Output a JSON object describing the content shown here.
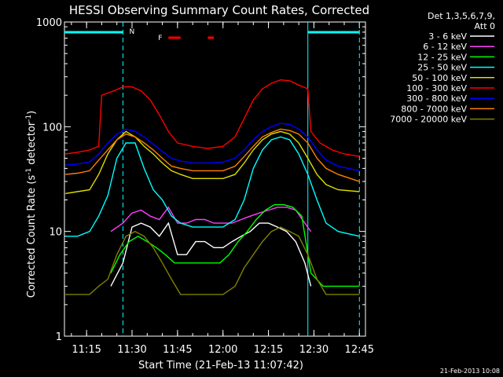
{
  "chart_data": {
    "type": "line",
    "title": "HESSI Observing Summary Count Rates, Corrected",
    "xlabel": "Start Time (21-Feb-13 11:07:42)",
    "ylabel_main": "Corrected Count Rate (s",
    "ylabel_sup1": "-1",
    "ylabel_mid": " detector",
    "ylabel_sup2": "-1",
    "ylabel_end": ")",
    "yscale": "log",
    "ylim": [
      1,
      1000
    ],
    "xlim": [
      "11:07:42",
      "12:47:00"
    ],
    "xticks": [
      "11:15",
      "11:30",
      "11:45",
      "12:00",
      "12:15",
      "12:30",
      "12:45"
    ],
    "yticks": [
      "1",
      "10",
      "100",
      "1000"
    ],
    "footer_timestamp": "21-Feb-2013 10:08",
    "legend_title_1": "Det 1,3,5,6,7,9,",
    "legend_title_2": "Att 0",
    "legend_position": "right",
    "night_label": "N",
    "flare_label": "F",
    "night_intervals": [
      [
        "11:07:42",
        "11:27:00"
      ],
      [
        "12:28:00",
        "12:45:00"
      ]
    ],
    "flare_intervals": [
      [
        "11:42:00",
        "11:46:00"
      ],
      [
        "11:55:00",
        "11:57:00"
      ]
    ],
    "series": [
      {
        "name": "3 - 6 keV",
        "color": "#ffffff",
        "points": [
          [
            "11:23",
            3
          ],
          [
            "11:27",
            5
          ],
          [
            "11:30",
            11
          ],
          [
            "11:33",
            12
          ],
          [
            "11:36",
            11
          ],
          [
            "11:39",
            9
          ],
          [
            "11:42",
            12
          ],
          [
            "11:45",
            6
          ],
          [
            "11:48",
            6
          ],
          [
            "11:51",
            8
          ],
          [
            "11:54",
            8
          ],
          [
            "11:57",
            7
          ],
          [
            "12:00",
            7
          ],
          [
            "12:03",
            8
          ],
          [
            "12:06",
            9
          ],
          [
            "12:09",
            10
          ],
          [
            "12:12",
            12
          ],
          [
            "12:15",
            12
          ],
          [
            "12:18",
            11
          ],
          [
            "12:21",
            10
          ],
          [
            "12:24",
            8
          ],
          [
            "12:27",
            5
          ],
          [
            "12:29",
            3
          ]
        ]
      },
      {
        "name": "6 - 12 keV",
        "color": "#ff40ff",
        "points": [
          [
            "11:23",
            10
          ],
          [
            "11:27",
            12
          ],
          [
            "11:30",
            15
          ],
          [
            "11:33",
            16
          ],
          [
            "11:36",
            14
          ],
          [
            "11:39",
            13
          ],
          [
            "11:42",
            17
          ],
          [
            "11:45",
            12
          ],
          [
            "11:48",
            12
          ],
          [
            "11:51",
            13
          ],
          [
            "11:54",
            13
          ],
          [
            "11:57",
            12
          ],
          [
            "12:00",
            12
          ],
          [
            "12:03",
            12
          ],
          [
            "12:06",
            13
          ],
          [
            "12:09",
            14
          ],
          [
            "12:12",
            15
          ],
          [
            "12:15",
            16
          ],
          [
            "12:18",
            17
          ],
          [
            "12:21",
            17
          ],
          [
            "12:24",
            16
          ],
          [
            "12:27",
            12
          ],
          [
            "12:29",
            10
          ]
        ]
      },
      {
        "name": "12 - 25 keV",
        "color": "#00ff00",
        "points": [
          [
            "11:23",
            4
          ],
          [
            "11:26",
            6
          ],
          [
            "11:29",
            8
          ],
          [
            "11:32",
            9
          ],
          [
            "11:35",
            8
          ],
          [
            "11:38",
            7
          ],
          [
            "11:41",
            6
          ],
          [
            "11:44",
            5
          ],
          [
            "11:47",
            5
          ],
          [
            "11:50",
            5
          ],
          [
            "11:53",
            5
          ],
          [
            "11:56",
            5
          ],
          [
            "11:59",
            5
          ],
          [
            "12:02",
            6
          ],
          [
            "12:05",
            8
          ],
          [
            "12:08",
            10
          ],
          [
            "12:11",
            13
          ],
          [
            "12:14",
            16
          ],
          [
            "12:17",
            18
          ],
          [
            "12:20",
            18
          ],
          [
            "12:23",
            17
          ],
          [
            "12:26",
            14
          ],
          [
            "12:29",
            4
          ],
          [
            "12:33",
            3
          ],
          [
            "12:45",
            3
          ]
        ]
      },
      {
        "name": "25 - 50 keV",
        "color": "#00ffff",
        "points": [
          [
            "11:08",
            9
          ],
          [
            "11:12",
            9
          ],
          [
            "11:16",
            10
          ],
          [
            "11:19",
            14
          ],
          [
            "11:22",
            22
          ],
          [
            "11:25",
            50
          ],
          [
            "11:28",
            70
          ],
          [
            "11:31",
            70
          ],
          [
            "11:34",
            40
          ],
          [
            "11:37",
            25
          ],
          [
            "11:40",
            20
          ],
          [
            "11:43",
            14
          ],
          [
            "11:46",
            12
          ],
          [
            "11:50",
            11
          ],
          [
            "11:55",
            11
          ],
          [
            "12:00",
            11
          ],
          [
            "12:04",
            13
          ],
          [
            "12:07",
            20
          ],
          [
            "12:10",
            40
          ],
          [
            "12:13",
            60
          ],
          [
            "12:16",
            75
          ],
          [
            "12:19",
            80
          ],
          [
            "12:22",
            75
          ],
          [
            "12:25",
            55
          ],
          [
            "12:28",
            35
          ],
          [
            "12:31",
            20
          ],
          [
            "12:34",
            12
          ],
          [
            "12:38",
            10
          ],
          [
            "12:45",
            9
          ]
        ]
      },
      {
        "name": "50 - 100 keV",
        "color": "#dddd00",
        "points": [
          [
            "11:08",
            23
          ],
          [
            "11:12",
            24
          ],
          [
            "11:16",
            25
          ],
          [
            "11:19",
            35
          ],
          [
            "11:22",
            55
          ],
          [
            "11:25",
            75
          ],
          [
            "11:28",
            90
          ],
          [
            "11:31",
            80
          ],
          [
            "11:34",
            65
          ],
          [
            "11:37",
            55
          ],
          [
            "11:40",
            45
          ],
          [
            "11:43",
            38
          ],
          [
            "11:46",
            35
          ],
          [
            "11:50",
            32
          ],
          [
            "11:55",
            32
          ],
          [
            "12:00",
            32
          ],
          [
            "12:04",
            35
          ],
          [
            "12:07",
            45
          ],
          [
            "12:10",
            60
          ],
          [
            "12:13",
            75
          ],
          [
            "12:16",
            85
          ],
          [
            "12:19",
            90
          ],
          [
            "12:22",
            85
          ],
          [
            "12:25",
            70
          ],
          [
            "12:28",
            50
          ],
          [
            "12:31",
            35
          ],
          [
            "12:34",
            28
          ],
          [
            "12:38",
            25
          ],
          [
            "12:45",
            24
          ]
        ]
      },
      {
        "name": "100 - 300 keV",
        "color": "#ff0000",
        "points": [
          [
            "11:08",
            55
          ],
          [
            "11:12",
            57
          ],
          [
            "11:16",
            60
          ],
          [
            "11:19",
            65
          ],
          [
            "11:20",
            200
          ],
          [
            "11:24",
            220
          ],
          [
            "11:27",
            240
          ],
          [
            "11:30",
            240
          ],
          [
            "11:33",
            220
          ],
          [
            "11:36",
            180
          ],
          [
            "11:39",
            130
          ],
          [
            "11:42",
            90
          ],
          [
            "11:45",
            70
          ],
          [
            "11:50",
            65
          ],
          [
            "11:55",
            62
          ],
          [
            "12:00",
            65
          ],
          [
            "12:04",
            80
          ],
          [
            "12:07",
            120
          ],
          [
            "12:10",
            180
          ],
          [
            "12:13",
            230
          ],
          [
            "12:16",
            260
          ],
          [
            "12:19",
            280
          ],
          [
            "12:22",
            275
          ],
          [
            "12:25",
            250
          ],
          [
            "12:28",
            230
          ],
          [
            "12:29",
            90
          ],
          [
            "12:32",
            70
          ],
          [
            "12:36",
            60
          ],
          [
            "12:40",
            55
          ],
          [
            "12:45",
            52
          ]
        ]
      },
      {
        "name": "300 - 800 keV",
        "color": "#0000ff",
        "points": [
          [
            "11:08",
            43
          ],
          [
            "11:12",
            44
          ],
          [
            "11:16",
            46
          ],
          [
            "11:19",
            55
          ],
          [
            "11:22",
            70
          ],
          [
            "11:25",
            85
          ],
          [
            "11:28",
            95
          ],
          [
            "11:31",
            90
          ],
          [
            "11:34",
            80
          ],
          [
            "11:37",
            68
          ],
          [
            "11:40",
            58
          ],
          [
            "11:43",
            50
          ],
          [
            "11:46",
            47
          ],
          [
            "11:50",
            45
          ],
          [
            "11:55",
            45
          ],
          [
            "12:00",
            46
          ],
          [
            "12:04",
            50
          ],
          [
            "12:07",
            60
          ],
          [
            "12:10",
            75
          ],
          [
            "12:13",
            90
          ],
          [
            "12:16",
            100
          ],
          [
            "12:19",
            108
          ],
          [
            "12:22",
            105
          ],
          [
            "12:25",
            95
          ],
          [
            "12:28",
            80
          ],
          [
            "12:31",
            60
          ],
          [
            "12:34",
            48
          ],
          [
            "12:38",
            42
          ],
          [
            "12:45",
            38
          ]
        ]
      },
      {
        "name": "800 - 7000 keV",
        "color": "#ff8000",
        "points": [
          [
            "11:08",
            35
          ],
          [
            "11:12",
            36
          ],
          [
            "11:16",
            38
          ],
          [
            "11:19",
            48
          ],
          [
            "11:22",
            60
          ],
          [
            "11:25",
            75
          ],
          [
            "11:28",
            85
          ],
          [
            "11:31",
            80
          ],
          [
            "11:34",
            70
          ],
          [
            "11:37",
            60
          ],
          [
            "11:40",
            50
          ],
          [
            "11:43",
            42
          ],
          [
            "11:46",
            40
          ],
          [
            "11:50",
            38
          ],
          [
            "11:55",
            38
          ],
          [
            "12:00",
            38
          ],
          [
            "12:04",
            42
          ],
          [
            "12:07",
            52
          ],
          [
            "12:10",
            65
          ],
          [
            "12:13",
            80
          ],
          [
            "12:16",
            88
          ],
          [
            "12:19",
            95
          ],
          [
            "12:22",
            92
          ],
          [
            "12:25",
            85
          ],
          [
            "12:28",
            70
          ],
          [
            "12:31",
            50
          ],
          [
            "12:34",
            40
          ],
          [
            "12:38",
            35
          ],
          [
            "12:45",
            30
          ]
        ]
      },
      {
        "name": "7000 - 20000 keV",
        "color": "#808000",
        "points": [
          [
            "11:08",
            2.5
          ],
          [
            "11:12",
            2.5
          ],
          [
            "11:16",
            2.5
          ],
          [
            "11:19",
            3
          ],
          [
            "11:22",
            3.5
          ],
          [
            "11:25",
            6
          ],
          [
            "11:28",
            9
          ],
          [
            "11:31",
            10
          ],
          [
            "11:34",
            9
          ],
          [
            "11:37",
            7
          ],
          [
            "11:40",
            5
          ],
          [
            "11:43",
            3.5
          ],
          [
            "11:46",
            2.5
          ],
          [
            "11:50",
            2.5
          ],
          [
            "11:55",
            2.5
          ],
          [
            "12:00",
            2.5
          ],
          [
            "12:04",
            3
          ],
          [
            "12:07",
            4.5
          ],
          [
            "12:10",
            6
          ],
          [
            "12:13",
            8
          ],
          [
            "12:16",
            10
          ],
          [
            "12:19",
            11
          ],
          [
            "12:22",
            10
          ],
          [
            "12:25",
            9
          ],
          [
            "12:28",
            6
          ],
          [
            "12:31",
            3.5
          ],
          [
            "12:34",
            2.5
          ],
          [
            "12:38",
            2.5
          ],
          [
            "12:45",
            2.5
          ]
        ]
      }
    ]
  }
}
